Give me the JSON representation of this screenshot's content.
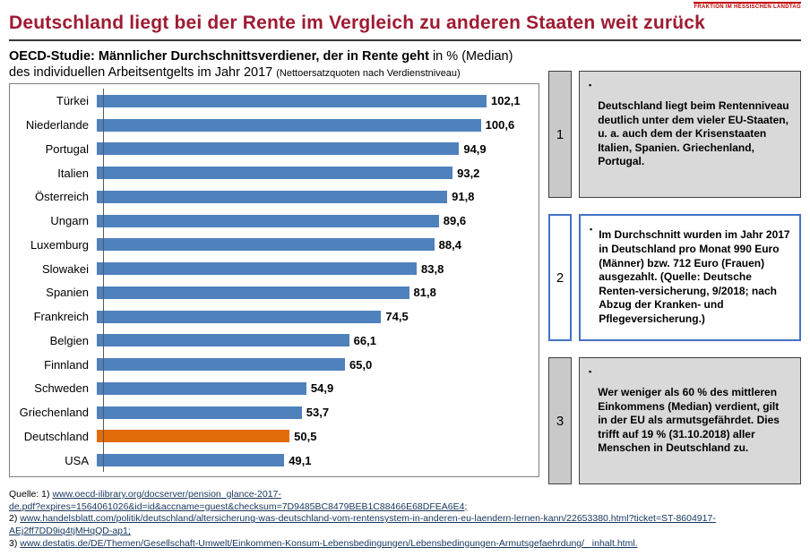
{
  "header": {
    "title": "Deutschland liegt bei der Rente im Vergleich zu anderen Staaten weit zurück",
    "logo_text": "FRAKTION IM HESSISCHEN LANDTAG",
    "logo_color": "#c00000",
    "title_color": "#9e1b32"
  },
  "chart_header": {
    "line1_bold": "OECD-Studie: Männlicher Durchschnittsverdiener, der in Rente geht",
    "line1_normal": "in % (Median)",
    "line2": "des individuellen Arbeitsentgelts im Jahr 2017",
    "line2_small": "(Nettoersatzquoten nach Verdienstniveau)"
  },
  "chart_data": {
    "type": "bar",
    "orientation": "horizontal",
    "title": "OECD-Studie: Männlicher Durchschnittsverdiener, der in Rente geht in % (Median) des individuellen Arbeitsentgelts im Jahr 2017 (Nettoersatzquoten nach Verdienstniveau)",
    "categories": [
      "Türkei",
      "Niederlande",
      "Portugal",
      "Italien",
      "Österreich",
      "Ungarn",
      "Luxemburg",
      "Slowakei",
      "Spanien",
      "Frankreich",
      "Belgien",
      "Finnland",
      "Schweden",
      "Griechenland",
      "Deutschland",
      "USA"
    ],
    "values": [
      102.1,
      100.6,
      94.9,
      93.2,
      91.8,
      89.6,
      88.4,
      83.8,
      81.8,
      74.5,
      66.1,
      65.0,
      54.9,
      53.7,
      50.5,
      49.1
    ],
    "value_labels": [
      "102,1",
      "100,6",
      "94,9",
      "93,2",
      "91,8",
      "89,6",
      "88,4",
      "83,8",
      "81,8",
      "74,5",
      "66,1",
      "65,0",
      "54,9",
      "53,7",
      "50,5",
      "49,1"
    ],
    "bar_color": "#4f81bd",
    "highlight_category": "Deutschland",
    "highlight_color": "#e36c0a",
    "xlim": [
      0,
      115
    ],
    "grid": false,
    "legend": false
  },
  "notes": [
    {
      "number": "1",
      "style": "gray",
      "text": "Deutschland liegt beim Rentenniveau deutlich unter dem vieler EU-Staaten, u. a. auch dem der Krisenstaaten Italien, Spanien. Griechenland, Portugal."
    },
    {
      "number": "2",
      "style": "blue",
      "text": "Im Durchschnitt wurden im Jahr 2017 in Deutschland pro Monat 990 Euro (Männer) bzw. 712 Euro (Frauen) ausgezahlt. (Quelle: Deutsche Renten-versicherung, 9/2018; nach Abzug der Kranken- und Pflegeversicherung.)"
    },
    {
      "number": "3",
      "style": "gray",
      "text": "Wer weniger als 60 % des mittleren Einkommens (Median) verdient, gilt in der EU als armutsgefährdet. Dies trifft auf 19 % (31.10.2018) aller Menschen in Deutschland zu."
    }
  ],
  "sources": {
    "lines": [
      {
        "prefix": "Quelle: 1) ",
        "link": "www.oecd-ilibrary.org/docserver/pension_glance-2017-"
      },
      {
        "prefix": "",
        "link": "de.pdf?expires=1564061026&id=id&accname=guest&checksum=7D9485BC8479BEB1C88466E68DFEA6E4;"
      },
      {
        "prefix": "2) ",
        "link": "www.handelsblatt.com/politik/deutschland/altersicherung-was-deutschland-vom-rentensystem-in-anderen-eu-laendern-lernen-kann/22653380.html?ticket=ST-8604917-AEj2ff7DD9iq4tjMHqQD-ap1;"
      },
      {
        "prefix": "3) ",
        "link": "www.destatis.de/DE/Themen/Gesellschaft-Umwelt/Einkommen-Konsum-Lebensbedingungen/Lebensbedingungen-Armutsgefaehrdung/_ inhalt.html."
      }
    ]
  }
}
